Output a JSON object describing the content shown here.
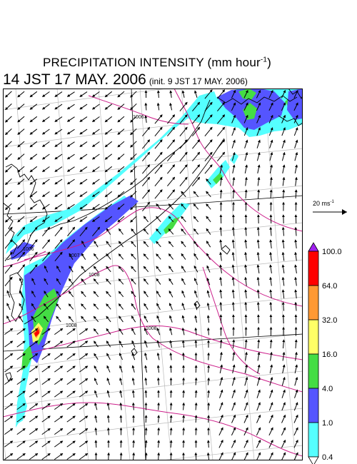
{
  "title": {
    "main": "PRECIPITATION INTENSITY (mm hour",
    "exponent": "-1",
    "close": ")"
  },
  "subtitle": {
    "valid_time": "14 JST 17 MAY. 2006",
    "init_time": "(init. 9 JST 17 MAY. 2006)"
  },
  "wind_scale": {
    "label": "20 ms",
    "exponent": "-1"
  },
  "legend": {
    "levels": [
      "100.0",
      "64.0",
      "32.0",
      "16.0",
      "4.0",
      "1.0",
      "0.4"
    ],
    "colors": [
      "#a020f0",
      "#ff0000",
      "#ff9933",
      "#ffff66",
      "#44dd44",
      "#5555ff",
      "#55ffff",
      "#ffffff"
    ]
  },
  "isobars": [
    "1006",
    "1006",
    "1007",
    "1008",
    "1008",
    "1008"
  ],
  "colors": {
    "isobar": "#cc1f8a",
    "grid": "#bbbbbb",
    "coast": "#000000"
  }
}
